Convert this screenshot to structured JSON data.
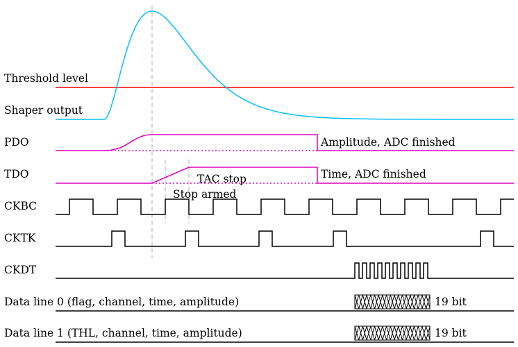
{
  "labels": {
    "threshold": "Threshold level",
    "shaper": "Shaper output",
    "pdo": "PDO",
    "tdo": "TDO",
    "ckbc": "CKBC",
    "cktk": "CKTK",
    "ckdt": "CKDT",
    "data0": "Data line 0 (flag, channel, time, amplitude)",
    "data1": "Data line 1 (THL, channel, time, amplitude)"
  },
  "annotations": {
    "amplitude_done": "Amplitude, ADC finished",
    "time_done": "Time, ADC finished",
    "tac_stop": "TAC stop",
    "stop_armed": "Stop armed",
    "data0_bits": "19 bit",
    "data1_bits": "19 bit"
  },
  "colors": {
    "threshold": "#ff0000",
    "shaper": "#00bfff",
    "pdo_tdo": "#e000c0",
    "clock": "#000000",
    "marker": "#bbbbbb"
  }
}
